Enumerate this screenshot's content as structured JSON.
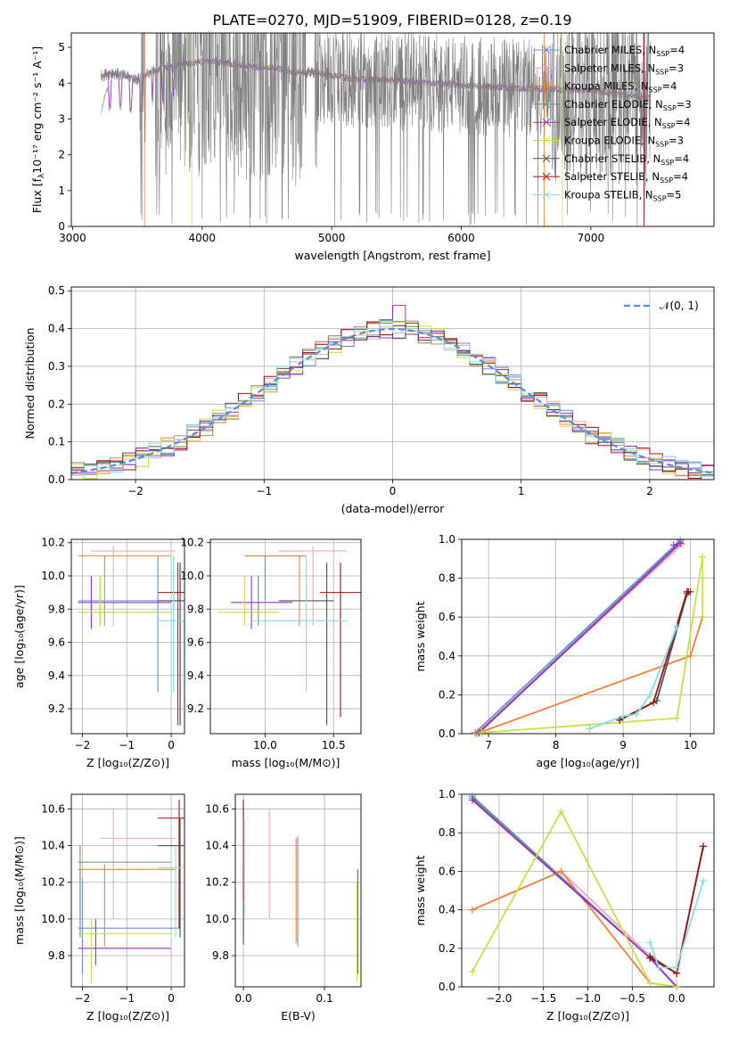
{
  "title": "PLATE=0270, MJD=51909, FIBERID=0128, z=0.19",
  "colors": [
    "#6b8fd6",
    "#f4a3c0",
    "#f0823a",
    "#6a8f6a",
    "#9b30c8",
    "#c8e04a",
    "#505050",
    "#a01010",
    "#88dce6"
  ],
  "panel_labels": {
    "spec_xlabel": "wavelength [Angstrom, rest frame]",
    "spec_ylabel_pre": "Flux [f",
    "spec_ylabel_sub": "λ",
    "spec_ylabel_post": "10⁻¹⁷ erg cm⁻² s⁻¹ A⁻¹]",
    "hist_xlabel": "(data-model)/error",
    "hist_ylabel": "Normed distribution",
    "hist_legend": "𝒩(0, 1)",
    "age_label": "age  [log₁₀(age/yr)]",
    "z_label": "Z [log₁₀(Z/Z⊙)]",
    "mass_label": "mass [log₁₀(M/M⊙)]",
    "ebv_label": "E(B-V)",
    "mw_label": "mass weight"
  },
  "chart_data": [
    {
      "type": "line",
      "id": "spectrum",
      "title": "PLATE=0270, MJD=51909, FIBERID=0128, z=0.19",
      "xlim": [
        2990,
        7950
      ],
      "ylim": [
        0,
        5.4
      ],
      "xticks": [
        3000,
        4000,
        5000,
        6000,
        7000
      ],
      "yticks": [
        0,
        1,
        2,
        3,
        4,
        5
      ],
      "xlabel": "wavelength [Angstrom, rest frame]",
      "ylabel": "Flux [fλ10⁻¹⁷ erg cm⁻² s⁻¹ A⁻¹]",
      "legend": [
        "Chabrier MILES, N_SSP=4",
        "Salpeter MILES, N_SSP=3",
        "Kroupa MILES, N_SSP=4",
        "Chabrier ELODIE, N_SSP=3",
        "Salpeter ELODIE, N_SSP=4",
        "Kroupa ELODIE, N_SSP=3",
        "Chabrier STELIB, N_SSP=4",
        "Salpeter STELIB, N_SSP=4",
        "Kroupa STELIB, N_SSP=5"
      ],
      "legend_loc": "right",
      "model_x": [
        3220,
        3300,
        3400,
        3500,
        3600,
        3700,
        3800,
        3900,
        4000,
        4100,
        4200,
        4300,
        4400,
        4500,
        4600,
        4700,
        4800,
        4900,
        5000,
        5200,
        5400,
        5600,
        5800,
        6000,
        6200,
        6400,
        6600,
        6800,
        7000,
        7200,
        7400
      ],
      "model_y": [
        4.2,
        4.3,
        4.2,
        4.1,
        4.3,
        4.4,
        4.5,
        4.55,
        4.6,
        4.6,
        4.55,
        4.5,
        4.45,
        4.45,
        4.4,
        4.3,
        4.3,
        4.3,
        4.2,
        4.1,
        4.1,
        4.05,
        4.0,
        3.95,
        3.9,
        3.85,
        3.85,
        3.8,
        3.8,
        3.7,
        3.6
      ]
    },
    {
      "type": "bar",
      "id": "residual_hist",
      "xlim": [
        -2.5,
        2.5
      ],
      "ylim": [
        0,
        0.51
      ],
      "xticks": [
        -2,
        -1,
        0,
        1,
        2
      ],
      "yticks": [
        0.0,
        0.1,
        0.2,
        0.3,
        0.4,
        0.5
      ],
      "xlabel": "(data-model)/error",
      "ylabel": "Normed distribution",
      "bin_width": 0.1,
      "legend": [
        "𝒩(0, 1)"
      ],
      "legend_loc": "top-right"
    },
    {
      "type": "scatter",
      "id": "age_vs_Z",
      "xlim": [
        -2.25,
        0.3
      ],
      "ylim": [
        9.05,
        10.22
      ],
      "xticks": [
        -2,
        -1,
        0
      ],
      "yticks": [
        9.2,
        9.4,
        9.6,
        9.8,
        10.0,
        10.2
      ],
      "xlabel": "Z [log₁₀(Z/Z⊙)]",
      "ylabel": "age  [log₁₀(age/yr)]"
    },
    {
      "type": "scatter",
      "id": "age_vs_mass",
      "xlim": [
        9.6,
        10.7
      ],
      "ylim": [
        9.05,
        10.22
      ],
      "xticks": [
        10.0,
        10.5
      ],
      "yticks": [
        9.2,
        9.4,
        9.6,
        9.8,
        10.0,
        10.2
      ],
      "xlabel": "mass [log₁₀(M/M⊙)]",
      "ylabel": ""
    },
    {
      "type": "line",
      "id": "massweight_vs_age",
      "xlim": [
        6.6,
        10.35
      ],
      "ylim": [
        0,
        1
      ],
      "xticks": [
        7,
        8,
        9,
        10
      ],
      "yticks": [
        0.0,
        0.2,
        0.4,
        0.6,
        0.8,
        1.0
      ],
      "xlabel": "age  [log₁₀(age/yr)]",
      "ylabel": "mass weight",
      "series": [
        {
          "x": [
            6.8,
            9.85
          ],
          "y": [
            0.005,
            0.995
          ]
        },
        {
          "x": [
            6.85,
            9.88
          ],
          "y": [
            0.01,
            0.975
          ]
        },
        {
          "x": [
            6.82,
            10.0,
            10.18
          ],
          "y": [
            0.0,
            0.4,
            0.6
          ]
        },
        {
          "x": [
            6.85,
            9.85
          ],
          "y": [
            0.005,
            0.985
          ]
        },
        {
          "x": [
            6.86,
            9.85,
            9.75
          ],
          "y": [
            0.005,
            0.98,
            0.97
          ]
        },
        {
          "x": [
            6.9,
            9.8,
            10.18,
            10.18
          ],
          "y": [
            0.005,
            0.08,
            0.91,
            0.6
          ]
        },
        {
          "x": [
            8.95,
            9.5,
            9.95,
            10.0
          ],
          "y": [
            0.07,
            0.17,
            0.72,
            0.73
          ]
        },
        {
          "x": [
            8.95,
            9.45,
            9.95,
            9.97
          ],
          "y": [
            0.07,
            0.16,
            0.73,
            0.73
          ]
        },
        {
          "x": [
            8.5,
            9.0,
            9.2,
            9.4,
            9.8
          ],
          "y": [
            0.025,
            0.09,
            0.1,
            0.2,
            0.55
          ]
        }
      ]
    },
    {
      "type": "scatter",
      "id": "mass_vs_Z",
      "xlim": [
        -2.25,
        0.3
      ],
      "ylim": [
        9.63,
        10.68
      ],
      "xticks": [
        -2,
        -1,
        0
      ],
      "yticks": [
        9.8,
        10.0,
        10.2,
        10.4,
        10.6
      ],
      "xlabel": "Z [log₁₀(Z/Z⊙)]",
      "ylabel": "mass [log₁₀(M/M⊙)]"
    },
    {
      "type": "scatter",
      "id": "mass_vs_ebv",
      "xlim": [
        -0.01,
        0.145
      ],
      "ylim": [
        9.63,
        10.68
      ],
      "xticks": [
        0.0,
        0.1
      ],
      "yticks": [
        9.8,
        10.0,
        10.2,
        10.4,
        10.6
      ],
      "xlabel": "E(B-V)",
      "ylabel": ""
    },
    {
      "type": "line",
      "id": "massweight_vs_Z",
      "xlim": [
        -2.42,
        0.42
      ],
      "ylim": [
        0,
        1
      ],
      "xticks": [
        -2.0,
        -1.5,
        -1.0,
        -0.5,
        0.0
      ],
      "yticks": [
        0.0,
        0.2,
        0.4,
        0.6,
        0.8,
        1.0
      ],
      "xlabel": "Z [log₁₀(Z/Z⊙)]",
      "ylabel": "mass weight",
      "series": [
        {
          "x": [
            -2.3,
            -0.3,
            0.0
          ],
          "y": [
            0.99,
            0.15,
            0.0
          ]
        },
        {
          "x": [
            -2.3,
            -1.3,
            -0.3
          ],
          "y": [
            0.4,
            0.6,
            0.16
          ]
        },
        {
          "x": [
            -2.3,
            -1.3,
            -0.3,
            0.0
          ],
          "y": [
            0.4,
            0.6,
            0.02,
            0.0
          ]
        },
        {
          "x": [
            -2.3,
            -0.3,
            0.0
          ],
          "y": [
            0.98,
            0.15,
            0.0
          ]
        },
        {
          "x": [
            -2.3,
            -0.3,
            0.0
          ],
          "y": [
            0.97,
            0.15,
            0.0
          ]
        },
        {
          "x": [
            -2.3,
            -1.3,
            -0.3,
            0.0
          ],
          "y": [
            0.08,
            0.91,
            0.02,
            0.0
          ]
        },
        {
          "x": [
            -0.3,
            0.0,
            0.3
          ],
          "y": [
            0.16,
            0.07,
            0.73
          ]
        },
        {
          "x": [
            -0.3,
            0.0,
            0.3
          ],
          "y": [
            0.15,
            0.07,
            0.73
          ]
        },
        {
          "x": [
            -0.3,
            -0.2,
            0.0,
            0.3
          ],
          "y": [
            0.23,
            0.1,
            0.1,
            0.55
          ]
        }
      ]
    }
  ]
}
